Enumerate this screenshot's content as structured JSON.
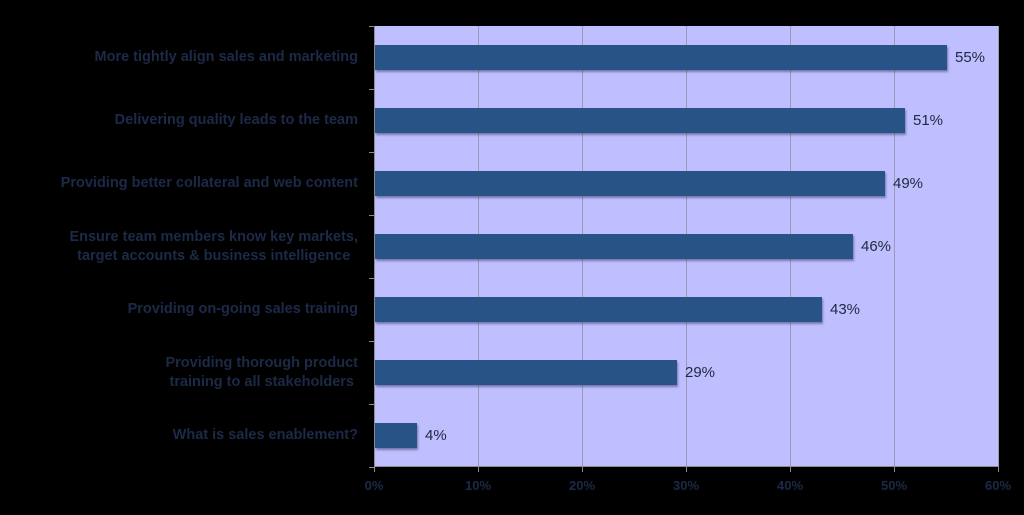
{
  "chart_data": {
    "type": "bar",
    "orientation": "horizontal",
    "title": "",
    "xlabel": "",
    "ylabel": "",
    "xlim": [
      0,
      60
    ],
    "grid": true,
    "categories": [
      "More tightly align sales and marketing",
      "Delivering quality leads to the team",
      "Providing better collateral and web content",
      "Ensure team members know key markets, target accounts & business intelligence",
      "Providing on-going sales training",
      "Providing thorough product training to all stakeholders",
      "What is sales enablement?"
    ],
    "values": [
      55,
      51,
      49,
      46,
      43,
      29,
      4
    ],
    "value_labels": [
      "55%",
      "51%",
      "49%",
      "46%",
      "43%",
      "29%",
      "4%"
    ],
    "x_ticks": [
      "0%",
      "10%",
      "20%",
      "30%",
      "40%",
      "50%",
      "60%"
    ],
    "colors": {
      "bar": "#275387",
      "plot_bg": "#bfbfff",
      "background": "#000000"
    }
  },
  "labels": [
    [
      "More tightly align sales and marketing"
    ],
    [
      "Delivering quality leads to the team"
    ],
    [
      "Providing better collateral and web content"
    ],
    [
      "Ensure team members know key markets,",
      "target accounts & business intelligence"
    ],
    [
      "Providing on-going sales training"
    ],
    [
      "Providing thorough product",
      "training to all stakeholders"
    ],
    [
      "What is sales enablement?"
    ]
  ]
}
